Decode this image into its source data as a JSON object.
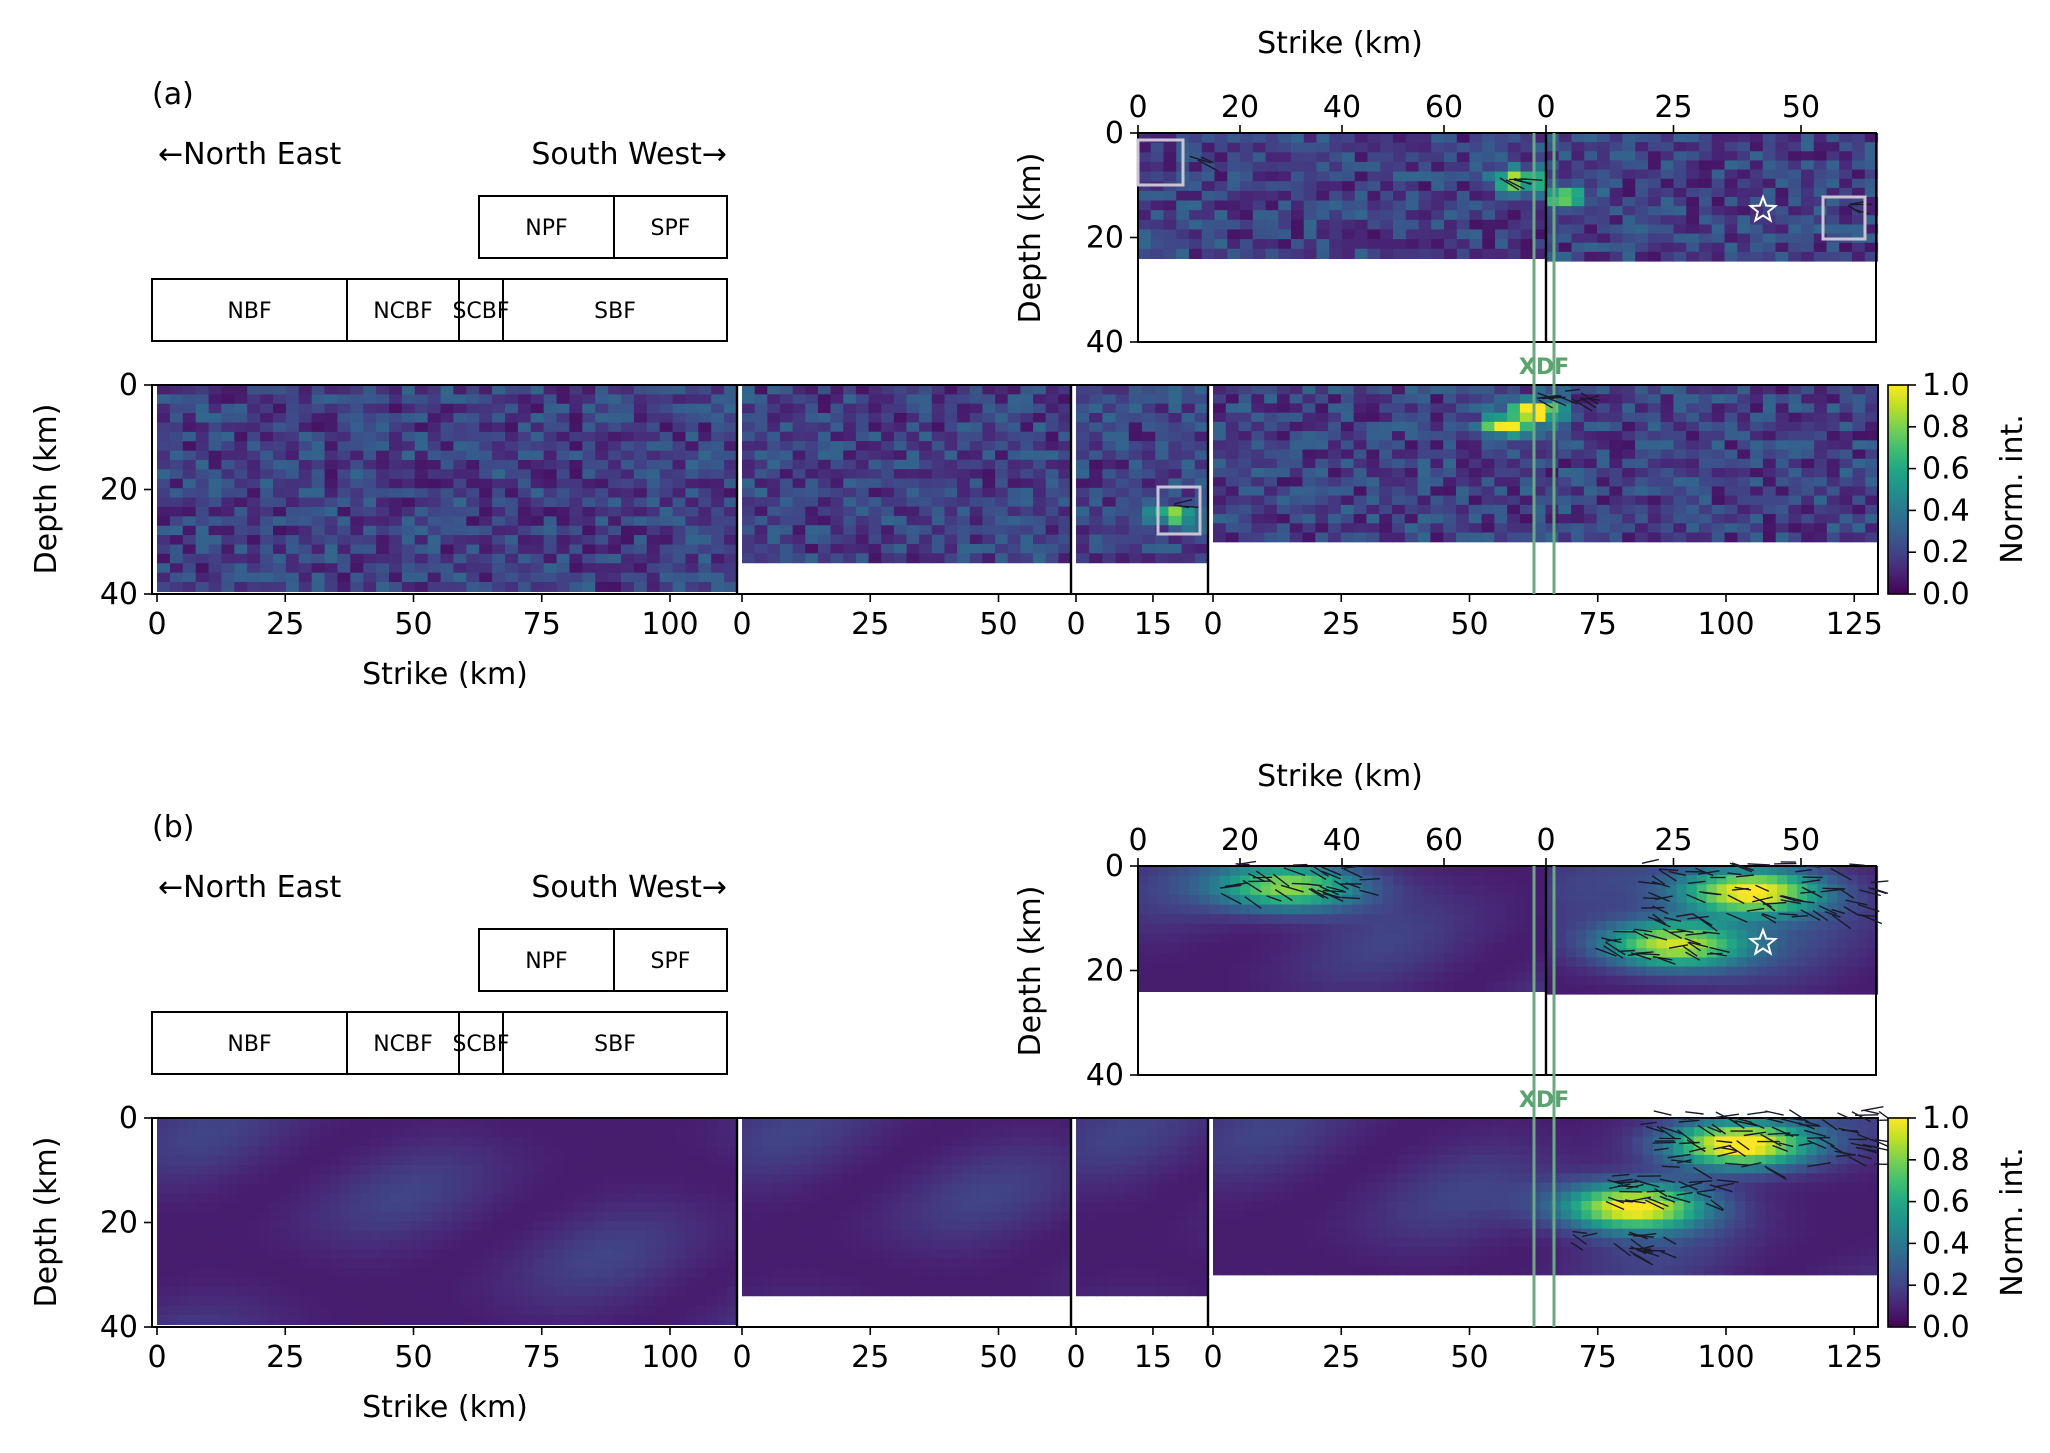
{
  "chart_data": [
    {
      "panel": "(a)",
      "type": "heatmap",
      "direction_left": "←North East",
      "direction_right": "South West→",
      "upper_segments": [
        {
          "label": "NPF",
          "color": "#c0142b"
        },
        {
          "label": "SPF",
          "color": "#c0142b"
        }
      ],
      "lower_segments": [
        {
          "label": "NBF",
          "color": "#3f72af"
        },
        {
          "label": "NCBF",
          "color": "#3f72af"
        },
        {
          "label": "SCBF",
          "color": "#3f72af"
        },
        {
          "label": "SBF",
          "color": "#3f72af"
        }
      ],
      "top_axis_label": "Strike (km)",
      "top_y_label": "Depth (km)",
      "bottom_x_label": "Strike (km)",
      "bottom_y_label": "Depth (km)",
      "colorbar_label": "Norm. int.",
      "colorbar_ticks": [
        "0.0",
        "0.2",
        "0.4",
        "0.6",
        "0.8",
        "1.0"
      ],
      "colorbar_range": [
        0.0,
        1.0
      ],
      "colormap": "viridis",
      "fault_marker": "XDF",
      "fault_marker_color": "#6aaa80",
      "top_faults": [
        {
          "name": "NPF",
          "length_km": 80,
          "max_depth_km": 24,
          "x_ticks": [
            0,
            20,
            40,
            60
          ]
        },
        {
          "name": "SPF",
          "length_km": 65,
          "max_depth_km": 24.5,
          "x_ticks": [
            0,
            25,
            50
          ]
        }
      ],
      "top_y_ticks": [
        0,
        20,
        40
      ],
      "top_ylim": [
        40,
        0
      ],
      "bottom_faults": [
        {
          "name": "NBF",
          "length_km": 113,
          "max_depth_km": 39.5,
          "x_ticks": [
            0,
            25,
            50,
            75,
            100
          ]
        },
        {
          "name": "NCBF",
          "length_km": 65,
          "max_depth_km": 34,
          "x_ticks": [
            0,
            25,
            50
          ]
        },
        {
          "name": "SCBF",
          "length_km": 26,
          "max_depth_km": 34,
          "x_ticks": [
            0,
            15
          ]
        },
        {
          "name": "SBF",
          "length_km": 130,
          "max_depth_km": 30,
          "x_ticks": [
            0,
            25,
            50,
            75,
            100,
            125
          ]
        }
      ],
      "bottom_y_ticks": [
        0,
        20,
        40
      ],
      "bottom_ylim": [
        40,
        0
      ],
      "hotspots": [
        {
          "fault": "SBF",
          "strike_km": 63,
          "depth_km": 5,
          "value": 1.0
        },
        {
          "fault": "SBF",
          "strike_km": 57,
          "depth_km": 8,
          "value": 0.7
        },
        {
          "fault": "NPF",
          "strike_km": 75,
          "depth_km": 9,
          "value": 0.7
        },
        {
          "fault": "SPF",
          "strike_km": 3,
          "depth_km": 12,
          "value": 0.6
        },
        {
          "fault": "SCBF",
          "strike_km": 20,
          "depth_km": 25,
          "value": 0.6
        }
      ],
      "epicenter": {
        "fault": "SPF",
        "strike_km": 44,
        "depth_km": 15
      }
    },
    {
      "panel": "(b)",
      "type": "heatmap",
      "direction_left": "←North East",
      "direction_right": "South West→",
      "upper_segments": [
        {
          "label": "NPF",
          "color": "#c0142b"
        },
        {
          "label": "SPF",
          "color": "#c0142b"
        }
      ],
      "lower_segments": [
        {
          "label": "NBF",
          "color": "#3f72af"
        },
        {
          "label": "NCBF",
          "color": "#3f72af"
        },
        {
          "label": "SCBF",
          "color": "#3f72af"
        },
        {
          "label": "SBF",
          "color": "#3f72af"
        }
      ],
      "top_axis_label": "Strike (km)",
      "top_y_label": "Depth (km)",
      "bottom_x_label": "Strike (km)",
      "bottom_y_label": "Depth (km)",
      "colorbar_label": "Norm. int.",
      "colorbar_ticks": [
        "0.0",
        "0.2",
        "0.4",
        "0.6",
        "0.8",
        "1.0"
      ],
      "colorbar_range": [
        0.0,
        1.0
      ],
      "colormap": "viridis",
      "fault_marker": "XDF",
      "fault_marker_color": "#6aaa80",
      "top_faults": [
        {
          "name": "NPF",
          "length_km": 80,
          "max_depth_km": 24,
          "x_ticks": [
            0,
            20,
            40,
            60
          ]
        },
        {
          "name": "SPF",
          "length_km": 65,
          "max_depth_km": 24.5,
          "x_ticks": [
            0,
            25,
            50
          ]
        }
      ],
      "top_y_ticks": [
        0,
        20,
        40
      ],
      "top_ylim": [
        40,
        0
      ],
      "bottom_faults": [
        {
          "name": "NBF",
          "length_km": 113,
          "max_depth_km": 39.5,
          "x_ticks": [
            0,
            25,
            50,
            75,
            100
          ]
        },
        {
          "name": "NCBF",
          "length_km": 65,
          "max_depth_km": 34,
          "x_ticks": [
            0,
            25,
            50
          ]
        },
        {
          "name": "SCBF",
          "length_km": 26,
          "max_depth_km": 34,
          "x_ticks": [
            0,
            15
          ]
        },
        {
          "name": "SBF",
          "length_km": 130,
          "max_depth_km": 30,
          "x_ticks": [
            0,
            25,
            50,
            75,
            100,
            125
          ]
        }
      ],
      "bottom_y_ticks": [
        0,
        20,
        40
      ],
      "bottom_ylim": [
        40,
        0
      ],
      "hotspots": [
        {
          "fault": "SBF",
          "strike_km": 103,
          "depth_km": 5,
          "value": 1.0
        },
        {
          "fault": "SBF",
          "strike_km": 82,
          "depth_km": 17,
          "value": 0.95
        },
        {
          "fault": "SPF",
          "strike_km": 40,
          "depth_km": 5,
          "value": 0.95
        },
        {
          "fault": "SPF",
          "strike_km": 25,
          "depth_km": 15,
          "value": 0.85
        },
        {
          "fault": "NPF",
          "strike_km": 30,
          "depth_km": 4,
          "value": 0.75
        }
      ],
      "epicenter": {
        "fault": "SPF",
        "strike_km": 44,
        "depth_km": 15
      }
    }
  ]
}
